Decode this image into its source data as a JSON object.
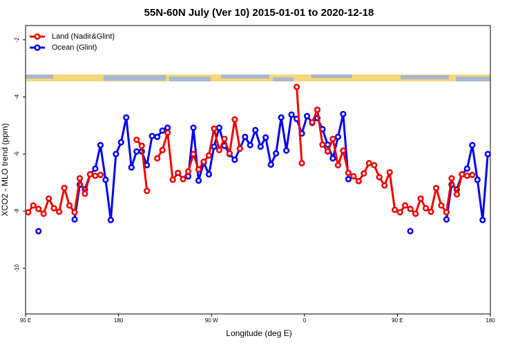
{
  "chart_data": {
    "type": "line",
    "title": "55N-60N July (Ver 10)   2015-01-01 to 2020-12-18",
    "xlabel": "Longitude (deg E)",
    "ylabel": "XCO2 - MLO trend (ppm)",
    "x": [
      92.5,
      97.5,
      102.5,
      107.5,
      112.5,
      117.5,
      122.5,
      127.5,
      132.5,
      137.5,
      142.5,
      147.5,
      152.5,
      157.5,
      162.5,
      167.5,
      172.5,
      177.5,
      182.5,
      187.5,
      192.5,
      197.5,
      202.5,
      207.5,
      212.5,
      217.5,
      222.5,
      227.5,
      232.5,
      237.5,
      242.5,
      247.5,
      252.5,
      257.5,
      262.5,
      267.5,
      272.5,
      277.5,
      282.5,
      287.5,
      292.5,
      297.5,
      302.5,
      307.5,
      312.5,
      317.5,
      322.5,
      327.5,
      332.5,
      337.5,
      342.5,
      347.5,
      352.5,
      357.5,
      362.5,
      367.5,
      372.5,
      377.5,
      382.5,
      387.5,
      392.5,
      397.5,
      402.5,
      407.5,
      412.5,
      417.5,
      422.5,
      427.5,
      432.5,
      437.5,
      442.5,
      447.5,
      452.5,
      457.5,
      462.5,
      467.5,
      472.5,
      477.5,
      482.5,
      487.5,
      492.5,
      497.5,
      502.5,
      507.5,
      512.5,
      517.5,
      522.5,
      527.5,
      532.5,
      537.5
    ],
    "series": [
      {
        "name": "Ocean (Glint)",
        "color": "#0000ee",
        "values": [
          null,
          null,
          -8.7,
          null,
          null,
          null,
          null,
          null,
          null,
          -8.29,
          -7.07,
          -7.24,
          -6.71,
          -6.51,
          -5.69,
          -6.9,
          -8.31,
          -6.0,
          -5.59,
          -4.72,
          -6.47,
          -5.91,
          -5.91,
          -6.39,
          -5.37,
          -5.4,
          -5.18,
          -5.08,
          null,
          null,
          null,
          -6.78,
          -5.08,
          -6.93,
          -6.3,
          -6.71,
          -5.74,
          -5.08,
          -5.71,
          -6.0,
          -6.2,
          -5.81,
          -5.4,
          -5.69,
          -5.16,
          -5.74,
          -5.42,
          -6.37,
          -5.98,
          -4.72,
          -5.88,
          -4.62,
          -4.77,
          -5.28,
          -4.67,
          -4.91,
          -4.74,
          -5.13,
          -5.67,
          -6.15,
          -5.4,
          -4.6,
          -6.88,
          null,
          null,
          null,
          null,
          null,
          null,
          null,
          null,
          null,
          null,
          null,
          -8.7,
          null,
          null,
          null,
          null,
          null,
          null,
          -8.29,
          -7.07,
          -7.24,
          -6.71,
          -6.51,
          -5.69,
          -6.9,
          -8.31,
          -6.0
        ]
      },
      {
        "name": "Land (Nadir&Glint)",
        "color": "#ee0000",
        "values": [
          -8.04,
          -7.8,
          -7.92,
          -8.09,
          -7.56,
          -7.9,
          -8.02,
          -7.19,
          -7.8,
          -8.04,
          -6.85,
          -7.39,
          -6.71,
          -6.76,
          -6.73,
          null,
          null,
          null,
          null,
          null,
          null,
          -5.5,
          -5.71,
          -7.29,
          null,
          -6.15,
          -5.86,
          -5.25,
          -6.9,
          -6.66,
          -6.88,
          -6.61,
          -6.0,
          -6.54,
          -6.27,
          -6.05,
          -5.11,
          -5.86,
          -5.47,
          -5.98,
          -4.79,
          -5.81,
          null,
          null,
          null,
          null,
          null,
          null,
          null,
          null,
          null,
          null,
          -3.65,
          -6.32,
          null,
          -4.89,
          -4.45,
          -5.67,
          -5.91,
          -5.47,
          -6.39,
          -5.88,
          -6.66,
          -6.78,
          -6.95,
          -6.68,
          -6.32,
          -6.39,
          -6.81,
          -7.1,
          -6.64,
          -7.95,
          -8.04,
          -7.8,
          -7.92,
          -8.09,
          -7.56,
          -7.9,
          -8.02,
          -7.19,
          -7.8,
          -8.04,
          -6.85,
          -7.41,
          -6.71,
          -6.76,
          -6.73,
          null,
          null,
          null
        ]
      }
    ],
    "legend_order": [
      1,
      0
    ],
    "legend": "top-left",
    "xlim": [
      90,
      540
    ],
    "xticks": [
      {
        "value": 90,
        "label": "90 E"
      },
      180,
      {
        "value": 270,
        "label": "90 W"
      },
      {
        "value": 360,
        "label": "0"
      },
      {
        "value": 450,
        "label": "90 E"
      },
      {
        "value": 540,
        "label": "180"
      }
    ],
    "ylim": [
      -11.6,
      -1.5
    ],
    "yticks": [
      -2,
      -4,
      -6,
      -8,
      -10
    ]
  }
}
